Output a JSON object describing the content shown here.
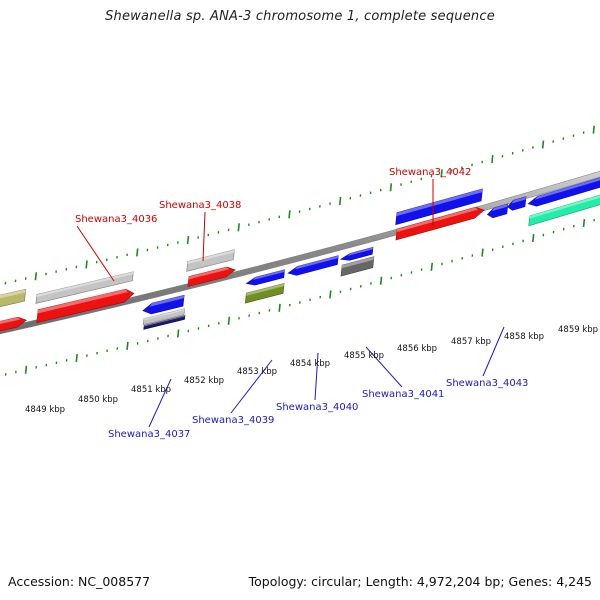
{
  "title": "Shewanella sp. ANA-3 chromosome 1, complete sequence",
  "accession": "Accession: NC_008577",
  "topology": "Topology: circular; Length: 4,972,204 bp; Genes: 4,245",
  "colors": {
    "forward_label": "#cc0000",
    "reverse_label": "#1a1acc",
    "tick": "#1e8a1e",
    "backbone": "#8a8a8a",
    "red": "#ee1111",
    "blue": "#1111ee",
    "gray": "#c4c4c4",
    "darkgray": "#666666",
    "navy": "#1a1a66",
    "olive": "#6f8f20",
    "teal": "#22eeaa",
    "tan": "#b9b76a"
  },
  "scale_labels": [
    "4849 kbp",
    "4850 kbp",
    "4851 kbp",
    "4852 kbp",
    "4853 kbp",
    "4854 kbp",
    "4855 kbp",
    "4856 kbp",
    "4857 kbp",
    "4858 kbp",
    "4859 kbp"
  ],
  "gene_labels": {
    "forward": [
      "Shewana3_4036",
      "Shewana3_4038",
      "Shewana3_4042"
    ],
    "reverse": [
      "Shewana3_4037",
      "Shewana3_4039",
      "Shewana3_4040",
      "Shewana3_4041",
      "Shewana3_4043"
    ]
  }
}
